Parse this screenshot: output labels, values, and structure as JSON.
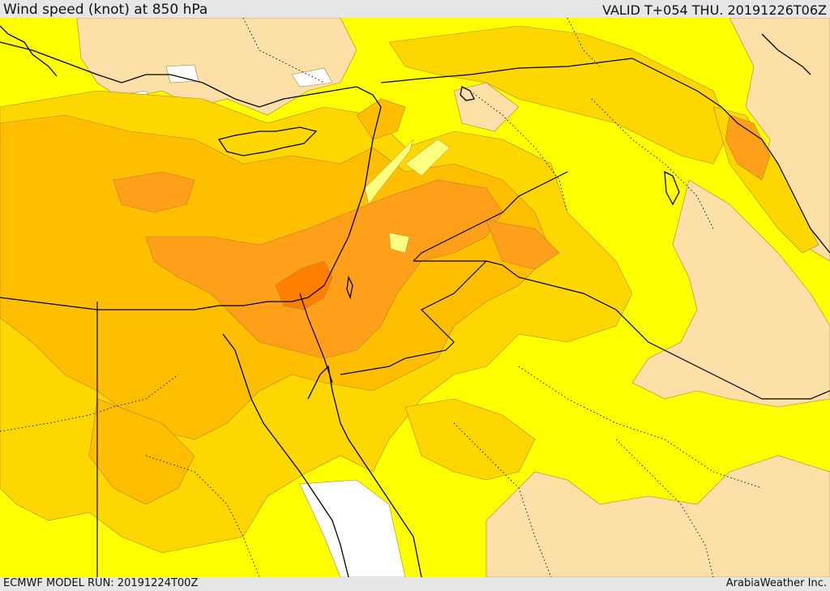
{
  "header": {
    "title": "Wind speed (knot) at 850 hPa",
    "valid_time": "VALID T+054 THU. 20191226T06Z"
  },
  "footer": {
    "model_run": "ECMWF MODEL RUN: 20191224T00Z",
    "credit": "ArabiaWeather Inc."
  },
  "colors": {
    "level_0": "#ffffff",
    "level_1": "#fde0a8",
    "level_2": "#ffff00",
    "level_3": "#ffd700",
    "level_4": "#ffbf00",
    "level_5": "#ff9f1a",
    "level_6": "#ff7f00",
    "boundary": "#000000",
    "contour": "#b08030"
  }
}
